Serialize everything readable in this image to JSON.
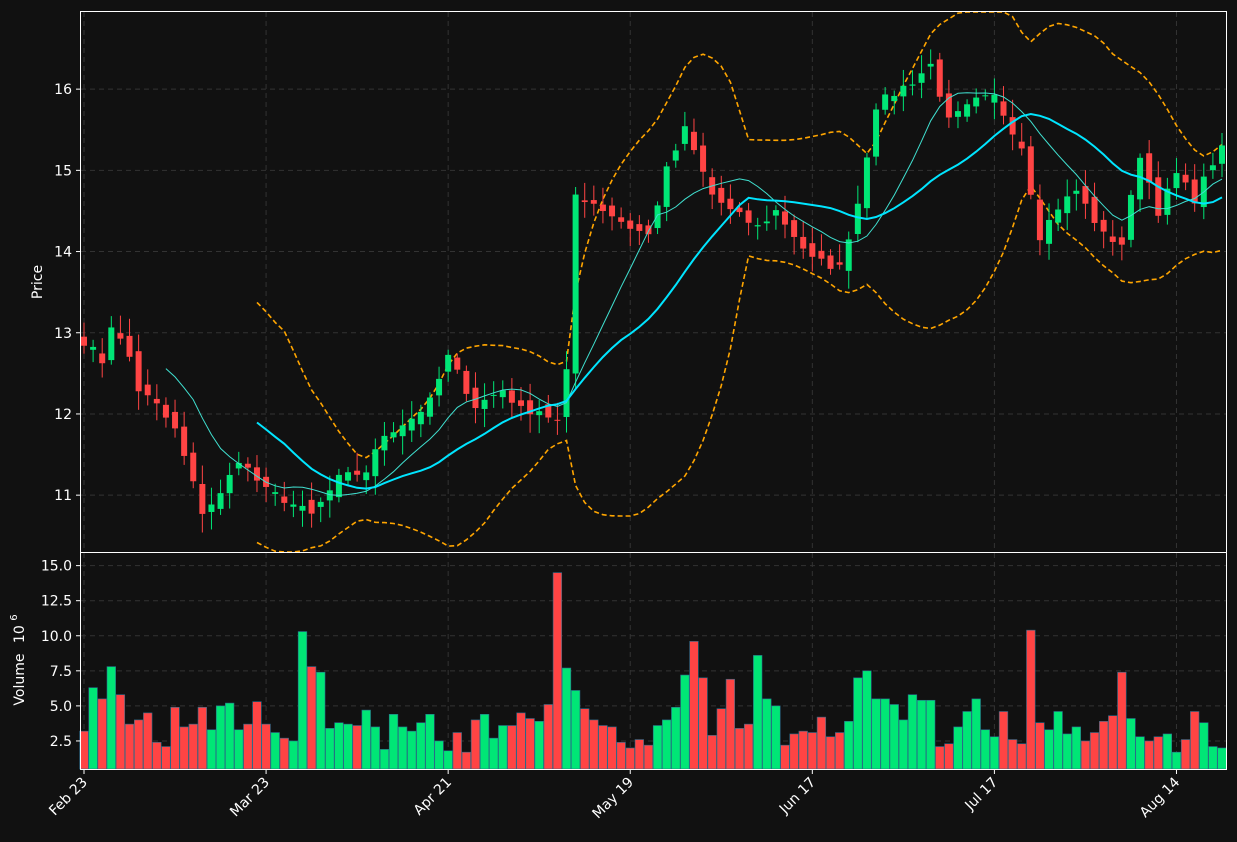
{
  "chart_data": {
    "type": "candlestick",
    "price_panel": {
      "ylabel": "Price",
      "ylim": [
        10.3,
        16.95
      ],
      "yticks": [
        11,
        12,
        13,
        14,
        15,
        16
      ],
      "grid": true
    },
    "volume_panel": {
      "ylabel": "Volume",
      "ylabel_exponent": "10",
      "ylabel_power": "6",
      "ylim": [
        0.5,
        15.9
      ],
      "yticks": [
        "2.5",
        "5.0",
        "7.5",
        "10.0",
        "12.5",
        "15.0"
      ],
      "grid": true
    },
    "x_ticks": [
      {
        "label": "Feb 23",
        "index": 0
      },
      {
        "label": "Mar 23",
        "index": 20
      },
      {
        "label": "Apr 21",
        "index": 40
      },
      {
        "label": "May 19",
        "index": 60
      },
      {
        "label": "Jun 17",
        "index": 80
      },
      {
        "label": "Jul 17",
        "index": 100
      },
      {
        "label": "Aug 14",
        "index": 120
      }
    ],
    "colors": {
      "background": "#111111",
      "up": "#00e676",
      "down": "#ff4444",
      "ma_short": "#40e0d0",
      "ma_long": "#00e5ff",
      "bands": "#ffa500",
      "grid": "#333333",
      "axes": "#ffffff"
    },
    "ohlc_anchors": [
      [
        0,
        12.9
      ],
      [
        2,
        12.65
      ],
      [
        3,
        13.1
      ],
      [
        5,
        12.7
      ],
      [
        6,
        12.3
      ],
      [
        8,
        12.1
      ],
      [
        10,
        11.8
      ],
      [
        13,
        10.8
      ],
      [
        15,
        11.0
      ],
      [
        17,
        11.45
      ],
      [
        20,
        11.05
      ],
      [
        22,
        10.95
      ],
      [
        25,
        10.75
      ],
      [
        28,
        11.2
      ],
      [
        31,
        11.3
      ],
      [
        33,
        11.75
      ],
      [
        36,
        11.95
      ],
      [
        38,
        12.15
      ],
      [
        40,
        12.7
      ],
      [
        43,
        12.1
      ],
      [
        46,
        12.3
      ],
      [
        48,
        12.05
      ],
      [
        50,
        12.05
      ],
      [
        52,
        11.9
      ],
      [
        53,
        12.5
      ],
      [
        54,
        14.7
      ],
      [
        56,
        14.6
      ],
      [
        60,
        14.3
      ],
      [
        62,
        14.2
      ],
      [
        64,
        15.0
      ],
      [
        66,
        15.5
      ],
      [
        69,
        14.7
      ],
      [
        71,
        14.5
      ],
      [
        74,
        14.3
      ],
      [
        76,
        14.5
      ],
      [
        80,
        13.9
      ],
      [
        83,
        13.8
      ],
      [
        85,
        14.6
      ],
      [
        87,
        15.8
      ],
      [
        91,
        16.1
      ],
      [
        93,
        16.3
      ],
      [
        95,
        15.6
      ],
      [
        98,
        15.85
      ],
      [
        100,
        15.9
      ],
      [
        103,
        15.3
      ],
      [
        105,
        14.2
      ],
      [
        107,
        14.55
      ],
      [
        109,
        14.75
      ],
      [
        112,
        14.2
      ],
      [
        114,
        14.1
      ],
      [
        116,
        15.2
      ],
      [
        118,
        14.5
      ],
      [
        120,
        14.95
      ],
      [
        122,
        14.65
      ],
      [
        124,
        15.1
      ],
      [
        125,
        15.25
      ]
    ],
    "volume_anchors": [
      [
        0,
        3.2
      ],
      [
        1,
        6.3
      ],
      [
        2,
        5.5
      ],
      [
        3,
        7.8
      ],
      [
        4,
        5.8
      ],
      [
        5,
        3.7
      ],
      [
        6,
        4.0
      ],
      [
        7,
        4.5
      ],
      [
        8,
        2.4
      ],
      [
        9,
        2.1
      ],
      [
        10,
        4.9
      ],
      [
        11,
        3.5
      ],
      [
        12,
        3.7
      ],
      [
        13,
        4.9
      ],
      [
        14,
        3.3
      ],
      [
        15,
        5.0
      ],
      [
        16,
        5.2
      ],
      [
        17,
        3.3
      ],
      [
        18,
        3.7
      ],
      [
        19,
        5.3
      ],
      [
        20,
        3.7
      ],
      [
        21,
        3.1
      ],
      [
        22,
        2.7
      ],
      [
        23,
        2.5
      ],
      [
        24,
        10.3
      ],
      [
        25,
        7.8
      ],
      [
        26,
        7.4
      ],
      [
        27,
        3.4
      ],
      [
        28,
        3.8
      ],
      [
        29,
        3.7
      ],
      [
        30,
        3.6
      ],
      [
        31,
        4.7
      ],
      [
        32,
        3.5
      ],
      [
        33,
        1.9
      ],
      [
        34,
        4.4
      ],
      [
        35,
        3.5
      ],
      [
        36,
        3.2
      ],
      [
        37,
        3.8
      ],
      [
        38,
        4.4
      ],
      [
        39,
        2.5
      ],
      [
        40,
        1.8
      ],
      [
        41,
        3.1
      ],
      [
        42,
        1.7
      ],
      [
        43,
        4.0
      ],
      [
        44,
        4.4
      ],
      [
        45,
        2.7
      ],
      [
        46,
        3.6
      ],
      [
        47,
        3.6
      ],
      [
        48,
        4.5
      ],
      [
        49,
        4.1
      ],
      [
        50,
        3.9
      ],
      [
        51,
        5.1
      ],
      [
        52,
        14.5
      ],
      [
        53,
        7.7
      ],
      [
        54,
        6.1
      ],
      [
        55,
        4.8
      ],
      [
        56,
        4.0
      ],
      [
        57,
        3.6
      ],
      [
        58,
        3.5
      ],
      [
        59,
        2.4
      ],
      [
        60,
        2.0
      ],
      [
        61,
        2.6
      ],
      [
        62,
        2.2
      ],
      [
        63,
        3.6
      ],
      [
        64,
        4.0
      ],
      [
        65,
        4.9
      ],
      [
        66,
        7.2
      ],
      [
        67,
        9.6
      ],
      [
        68,
        7.0
      ],
      [
        69,
        2.9
      ],
      [
        70,
        4.8
      ],
      [
        71,
        6.9
      ],
      [
        72,
        3.4
      ],
      [
        73,
        3.7
      ],
      [
        74,
        8.6
      ],
      [
        75,
        5.5
      ],
      [
        76,
        5.0
      ],
      [
        77,
        2.2
      ],
      [
        78,
        3.0
      ],
      [
        79,
        3.2
      ],
      [
        80,
        3.1
      ],
      [
        81,
        4.2
      ],
      [
        82,
        2.8
      ],
      [
        83,
        3.1
      ],
      [
        84,
        3.9
      ],
      [
        85,
        7.0
      ],
      [
        86,
        7.5
      ],
      [
        87,
        5.5
      ],
      [
        88,
        5.5
      ],
      [
        89,
        5.1
      ],
      [
        90,
        4.0
      ],
      [
        91,
        5.8
      ],
      [
        92,
        5.4
      ],
      [
        93,
        5.4
      ],
      [
        94,
        2.1
      ],
      [
        95,
        2.3
      ],
      [
        96,
        3.5
      ],
      [
        97,
        4.6
      ],
      [
        98,
        5.5
      ],
      [
        99,
        3.3
      ],
      [
        100,
        2.8
      ],
      [
        101,
        4.6
      ],
      [
        102,
        2.6
      ],
      [
        103,
        2.3
      ],
      [
        104,
        10.4
      ],
      [
        105,
        3.8
      ],
      [
        106,
        3.3
      ],
      [
        107,
        4.6
      ],
      [
        108,
        3.0
      ],
      [
        109,
        3.5
      ],
      [
        110,
        2.5
      ],
      [
        111,
        3.1
      ],
      [
        112,
        3.9
      ],
      [
        113,
        4.3
      ],
      [
        114,
        7.4
      ],
      [
        115,
        4.1
      ],
      [
        116,
        2.8
      ],
      [
        117,
        2.5
      ],
      [
        118,
        2.8
      ],
      [
        119,
        3.0
      ],
      [
        120,
        1.7
      ],
      [
        121,
        2.6
      ],
      [
        122,
        4.6
      ],
      [
        123,
        3.8
      ],
      [
        124,
        2.1
      ],
      [
        125,
        2.0
      ]
    ],
    "num_sessions": 126,
    "ma_short_window": 10,
    "ma_long_window": 20,
    "band_window": 20,
    "band_stdev": 2
  }
}
